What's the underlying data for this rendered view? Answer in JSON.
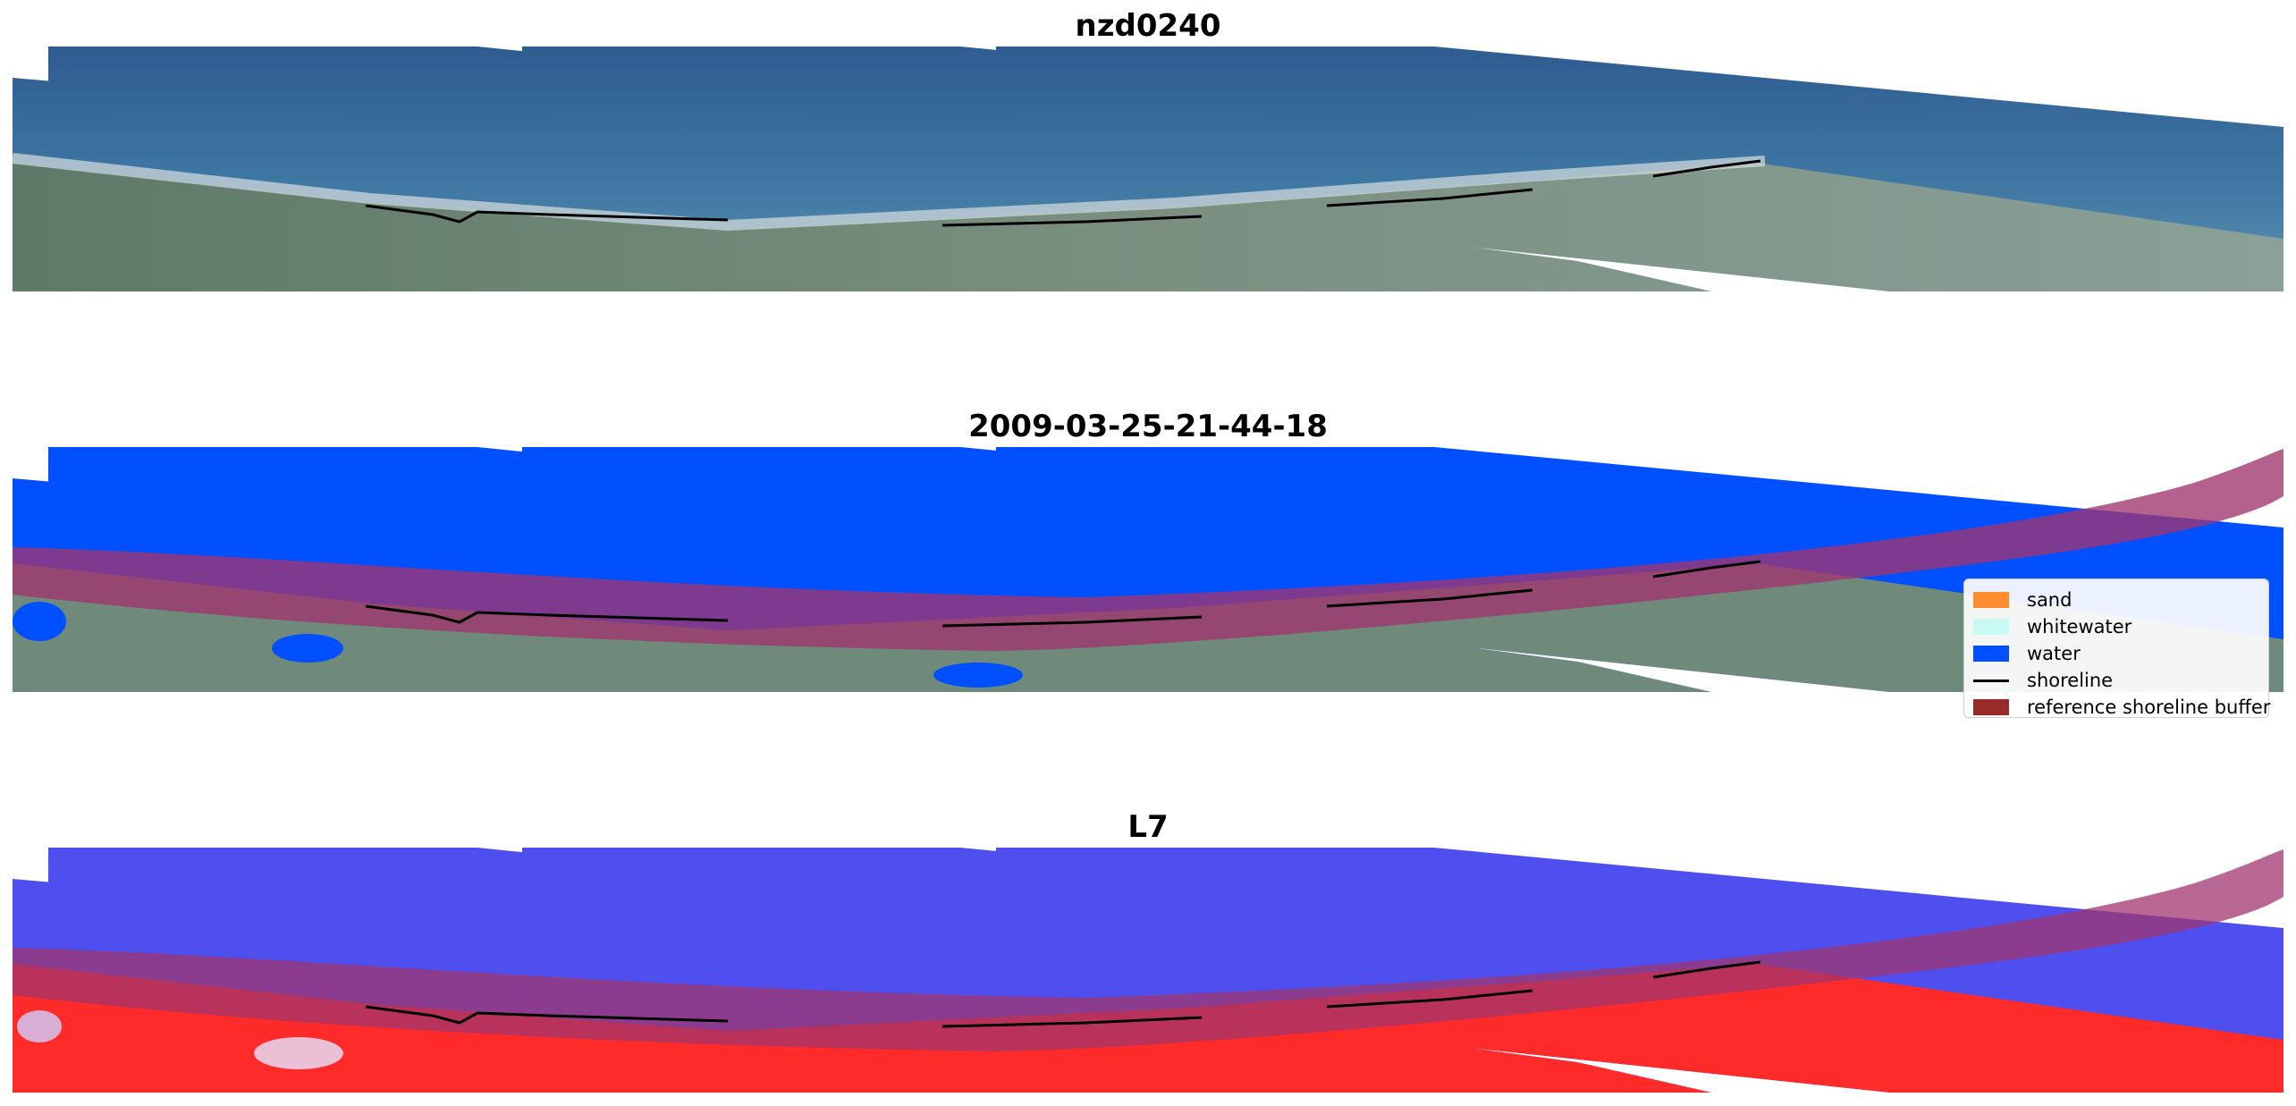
{
  "panels": [
    {
      "title": "nzd0240",
      "kind": "rgb"
    },
    {
      "title": "2009-03-25-21-44-18",
      "kind": "classified"
    },
    {
      "title": "L7",
      "kind": "index"
    }
  ],
  "legend": {
    "items": [
      {
        "label": "sand",
        "color": "#ff8c2e",
        "type": "patch"
      },
      {
        "label": "whitewater",
        "color": "#c8faf4",
        "type": "patch"
      },
      {
        "label": "water",
        "color": "#0050ff",
        "type": "patch"
      },
      {
        "label": "shoreline",
        "color": "#000000",
        "type": "line"
      },
      {
        "label": "reference shoreline buffer",
        "color": "#9a2a2a",
        "type": "patch"
      }
    ]
  },
  "colors": {
    "ocean_rgb": "#3d6e9c",
    "land_rgb": "#6f8a7a",
    "water_class": "#0050ff",
    "buffer": "#b0407a",
    "index_blue": "#5050f0",
    "index_red": "#ff2020"
  }
}
